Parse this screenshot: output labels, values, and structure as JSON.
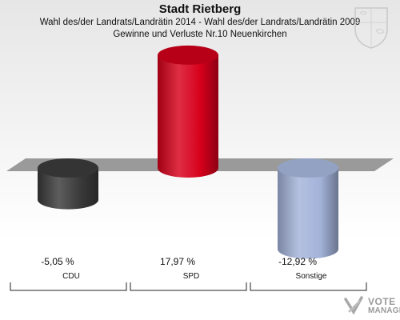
{
  "header": {
    "title": "Stadt Rietberg",
    "subtitle1": "Wahl des/der Landrats/Landrätin 2014 - Wahl des/der Landrats/Landrätin 2009",
    "subtitle2": "Gewinne und Verluste Nr.10 Neuenkirchen"
  },
  "crest": {
    "icon": "city-crest-icon"
  },
  "logo": {
    "line1": "VOTE",
    "line2": "MANAGER",
    "icon": "vote-manager-logo-icon"
  },
  "chart_data": {
    "type": "bar",
    "categories": [
      "CDU",
      "SPD",
      "Sonstige"
    ],
    "values": [
      -5.05,
      17.97,
      -12.92
    ],
    "value_labels": [
      "-5,05 %",
      "17,97 %",
      "-12,92 %"
    ],
    "colors": [
      "#3a3a3a",
      "#d7001b",
      "#a3b3d9"
    ],
    "title": "Stadt Rietberg",
    "xlabel": "",
    "ylabel": "",
    "grid": false,
    "legend": "none"
  }
}
